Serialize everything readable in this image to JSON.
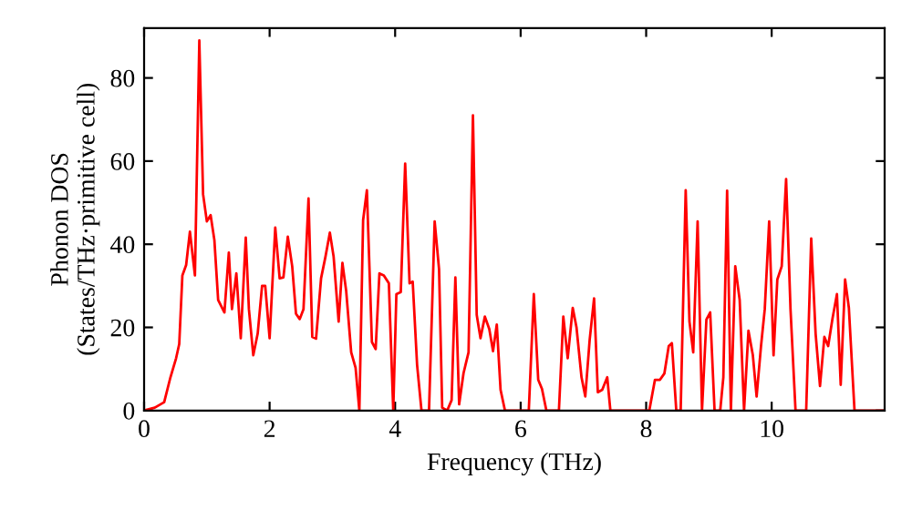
{
  "chart_data": {
    "type": "line",
    "xlabel": "Frequency (THz)",
    "ylabel": "Phonon DOS\n(States/THz·primitive cell)",
    "xlim": [
      0,
      11.8
    ],
    "ylim": [
      0,
      92
    ],
    "xticks": [
      0,
      2,
      4,
      6,
      8,
      10
    ],
    "yticks": [
      0,
      20,
      40,
      60,
      80
    ],
    "grid": false,
    "marker": "none",
    "line_style": "solid",
    "series": [
      {
        "color": "#ff0000",
        "x": [
          0,
          0.17,
          0.32,
          0.42,
          0.51,
          0.56,
          0.61,
          0.67,
          0.73,
          0.81,
          0.88,
          0.94,
          1.0,
          1.06,
          1.12,
          1.18,
          1.28,
          1.35,
          1.4,
          1.47,
          1.54,
          1.62,
          1.67,
          1.74,
          1.81,
          1.88,
          1.93,
          2.0,
          2.09,
          2.16,
          2.22,
          2.29,
          2.36,
          2.42,
          2.48,
          2.54,
          2.62,
          2.68,
          2.74,
          2.82,
          2.89,
          2.96,
          3.02,
          3.1,
          3.16,
          3.22,
          3.3,
          3.37,
          3.43,
          3.49,
          3.55,
          3.63,
          3.69,
          3.75,
          3.82,
          3.9,
          3.97,
          4.02,
          4.09,
          4.16,
          4.23,
          4.28,
          4.35,
          4.42,
          4.54,
          4.63,
          4.7,
          4.75,
          4.83,
          4.9,
          4.96,
          5.02,
          5.09,
          5.17,
          5.24,
          5.3,
          5.36,
          5.43,
          5.5,
          5.56,
          5.62,
          5.68,
          5.75,
          6.13,
          6.21,
          6.28,
          6.34,
          6.41,
          6.61,
          6.68,
          6.75,
          6.83,
          6.89,
          6.97,
          7.03,
          7.1,
          7.17,
          7.23,
          7.3,
          7.38,
          7.43,
          7.47,
          7.55,
          8.05,
          8.14,
          8.22,
          8.29,
          8.36,
          8.41,
          8.48,
          8.55,
          8.63,
          8.69,
          8.75,
          8.82,
          8.89,
          8.96,
          9.02,
          9.09,
          9.18,
          9.23,
          9.29,
          9.35,
          9.42,
          9.49,
          9.56,
          9.63,
          9.7,
          9.76,
          9.83,
          9.89,
          9.96,
          10.03,
          10.09,
          10.16,
          10.23,
          10.3,
          10.38,
          10.55,
          10.63,
          10.7,
          10.77,
          10.84,
          10.9,
          10.97,
          11.04,
          11.1,
          11.17,
          11.23,
          11.32,
          11.8
        ],
        "values": [
          0,
          0.7,
          2,
          8,
          12.6,
          16,
          32.5,
          35,
          43,
          32.5,
          89,
          52,
          45.5,
          47,
          41,
          26.6,
          23.6,
          38,
          24.4,
          33,
          17.4,
          41.6,
          24.4,
          13.3,
          18.5,
          30,
          30,
          17.4,
          44,
          31.8,
          32,
          41.8,
          34.7,
          23.3,
          22,
          24.4,
          51,
          17.7,
          17.3,
          31.8,
          37,
          42.8,
          37,
          21.4,
          35.5,
          28.8,
          14,
          10.3,
          0,
          45.8,
          53,
          16.5,
          14.8,
          33,
          32.5,
          30.6,
          0,
          28,
          28.5,
          59.4,
          30.6,
          31,
          11,
          0,
          0,
          45.5,
          34,
          0.7,
          0,
          2.5,
          32,
          1.5,
          9,
          14,
          71,
          23,
          17.4,
          22.6,
          19.6,
          14.3,
          20.7,
          5,
          0,
          0,
          28,
          7.4,
          5.2,
          0,
          0,
          22.6,
          12.6,
          24.7,
          20,
          8,
          3.4,
          17,
          27,
          4.4,
          5,
          8,
          0,
          0,
          0,
          0,
          7.4,
          7.4,
          8.9,
          15.5,
          16.2,
          0,
          0,
          53,
          21.4,
          14,
          45.5,
          0,
          21.9,
          23.6,
          0,
          0,
          8,
          52.9,
          0,
          34.7,
          26.6,
          0,
          19.2,
          13.3,
          3.4,
          15.5,
          24.4,
          45.5,
          13.3,
          31.5,
          34.7,
          55.7,
          24.4,
          0,
          0,
          41.4,
          18.5,
          5.9,
          17.7,
          15.5,
          22.2,
          28,
          6.2,
          31.5,
          24.7,
          0,
          0
        ]
      }
    ]
  }
}
